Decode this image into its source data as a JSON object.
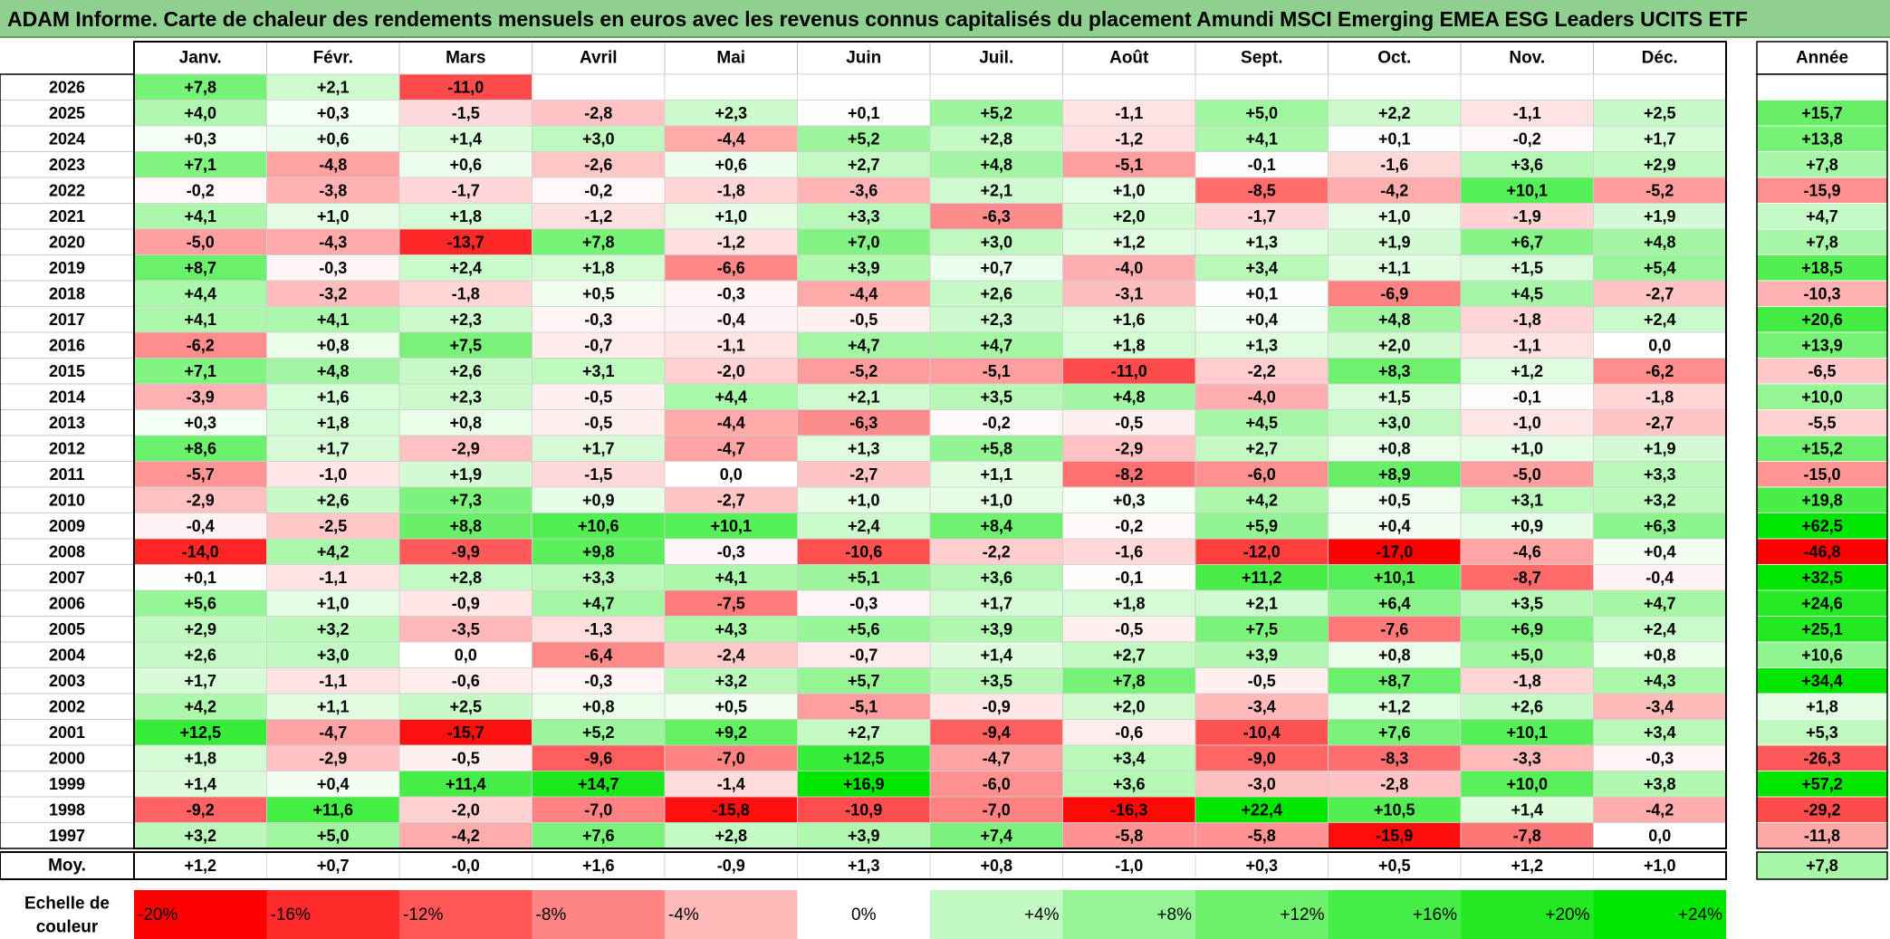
{
  "title": "ADAM Informe. Carte de chaleur des rendements mensuels en euros avec les revenus connus capitalisés du placement Amundi MSCI Emerging EMEA ESG Leaders UCITS ETF",
  "chart_data": {
    "type": "heatmap",
    "title": "ADAM Informe. Carte de chaleur des rendements mensuels en euros avec les revenus connus capitalisés du placement Amundi MSCI Emerging EMEA ESG Leaders UCITS ETF",
    "months": [
      "Janv.",
      "Févr.",
      "Mars",
      "Avril",
      "Mai",
      "Juin",
      "Juil.",
      "Août",
      "Sept.",
      "Oct.",
      "Nov.",
      "Déc."
    ],
    "year_header": "Année",
    "rows": [
      {
        "year": "2026",
        "values": [
          7.8,
          2.1,
          -11.0,
          null,
          null,
          null,
          null,
          null,
          null,
          null,
          null,
          null
        ],
        "annual": null
      },
      {
        "year": "2025",
        "values": [
          4.0,
          0.3,
          -1.5,
          -2.8,
          2.3,
          0.1,
          5.2,
          -1.1,
          5.0,
          2.2,
          -1.1,
          2.5
        ],
        "annual": 15.7
      },
      {
        "year": "2024",
        "values": [
          0.3,
          0.6,
          1.4,
          3.0,
          -4.4,
          5.2,
          2.8,
          -1.2,
          4.1,
          0.1,
          -0.2,
          1.7
        ],
        "annual": 13.8
      },
      {
        "year": "2023",
        "values": [
          7.1,
          -4.8,
          0.6,
          -2.6,
          0.6,
          2.7,
          4.8,
          -5.1,
          -0.1,
          -1.6,
          3.6,
          2.9
        ],
        "annual": 7.8
      },
      {
        "year": "2022",
        "values": [
          -0.2,
          -3.8,
          -1.7,
          -0.2,
          -1.8,
          -3.6,
          2.1,
          1.0,
          -8.5,
          -4.2,
          10.1,
          -5.2
        ],
        "annual": -15.9
      },
      {
        "year": "2021",
        "values": [
          4.1,
          1.0,
          1.8,
          -1.2,
          1.0,
          3.3,
          -6.3,
          2.0,
          -1.7,
          1.0,
          -1.9,
          1.9
        ],
        "annual": 4.7
      },
      {
        "year": "2020",
        "values": [
          -5.0,
          -4.3,
          -13.7,
          7.8,
          -1.2,
          7.0,
          3.0,
          1.2,
          1.3,
          1.9,
          6.7,
          4.8
        ],
        "annual": 7.8
      },
      {
        "year": "2019",
        "values": [
          8.7,
          -0.3,
          2.4,
          1.8,
          -6.6,
          3.9,
          0.7,
          -4.0,
          3.4,
          1.1,
          1.5,
          5.4
        ],
        "annual": 18.5
      },
      {
        "year": "2018",
        "values": [
          4.4,
          -3.2,
          -1.8,
          0.5,
          -0.3,
          -4.4,
          2.6,
          -3.1,
          0.1,
          -6.9,
          4.5,
          -2.7
        ],
        "annual": -10.3
      },
      {
        "year": "2017",
        "values": [
          4.1,
          4.1,
          2.3,
          -0.3,
          -0.4,
          -0.5,
          2.3,
          1.6,
          0.4,
          4.8,
          -1.8,
          2.4
        ],
        "annual": 20.6
      },
      {
        "year": "2016",
        "values": [
          -6.2,
          0.8,
          7.5,
          -0.7,
          -1.1,
          4.7,
          4.7,
          1.8,
          1.3,
          2.0,
          -1.1,
          0.0
        ],
        "annual": 13.9
      },
      {
        "year": "2015",
        "values": [
          7.1,
          4.8,
          2.6,
          3.1,
          -2.0,
          -5.2,
          -5.1,
          -11.0,
          -2.2,
          8.3,
          1.2,
          -6.2
        ],
        "annual": -6.5
      },
      {
        "year": "2014",
        "values": [
          -3.9,
          1.6,
          2.3,
          -0.5,
          4.4,
          2.1,
          3.5,
          4.8,
          -4.0,
          1.5,
          -0.1,
          -1.8
        ],
        "annual": 10.0
      },
      {
        "year": "2013",
        "values": [
          0.3,
          1.8,
          0.8,
          -0.5,
          -4.4,
          -6.3,
          -0.2,
          -0.5,
          4.5,
          3.0,
          -1.0,
          -2.7
        ],
        "annual": -5.5
      },
      {
        "year": "2012",
        "values": [
          8.6,
          1.7,
          -2.9,
          1.7,
          -4.7,
          1.3,
          5.8,
          -2.9,
          2.7,
          0.8,
          1.0,
          1.9
        ],
        "annual": 15.2
      },
      {
        "year": "2011",
        "values": [
          -5.7,
          -1.0,
          1.9,
          -1.5,
          0.0,
          -2.7,
          1.1,
          -8.2,
          -6.0,
          8.9,
          -5.0,
          3.3
        ],
        "annual": -15.0
      },
      {
        "year": "2010",
        "values": [
          -2.9,
          2.6,
          7.3,
          0.9,
          -2.7,
          1.0,
          1.0,
          0.3,
          4.2,
          0.5,
          3.1,
          3.2
        ],
        "annual": 19.8
      },
      {
        "year": "2009",
        "values": [
          -0.4,
          -2.5,
          8.8,
          10.6,
          10.1,
          2.4,
          8.4,
          -0.2,
          5.9,
          0.4,
          0.9,
          6.3
        ],
        "annual": 62.5
      },
      {
        "year": "2008",
        "values": [
          -14.0,
          4.2,
          -9.9,
          9.8,
          -0.3,
          -10.6,
          -2.2,
          -1.6,
          -12.0,
          -17.0,
          -4.6,
          0.4
        ],
        "annual": -46.8
      },
      {
        "year": "2007",
        "values": [
          0.1,
          -1.1,
          2.8,
          3.3,
          4.1,
          5.1,
          3.6,
          -0.1,
          11.2,
          10.1,
          -8.7,
          -0.4
        ],
        "annual": 32.5
      },
      {
        "year": "2006",
        "values": [
          5.6,
          1.0,
          -0.9,
          4.7,
          -7.5,
          -0.3,
          1.7,
          1.8,
          2.1,
          6.4,
          3.5,
          4.7
        ],
        "annual": 24.6
      },
      {
        "year": "2005",
        "values": [
          2.9,
          3.2,
          -3.5,
          -1.3,
          4.3,
          5.6,
          3.9,
          -0.5,
          7.5,
          -7.6,
          6.9,
          2.4
        ],
        "annual": 25.1
      },
      {
        "year": "2004",
        "values": [
          2.6,
          3.0,
          0.0,
          -6.4,
          -2.4,
          -0.7,
          1.4,
          2.7,
          3.9,
          0.8,
          5.0,
          0.8
        ],
        "annual": 10.6
      },
      {
        "year": "2003",
        "values": [
          1.7,
          -1.1,
          -0.6,
          -0.3,
          3.2,
          5.7,
          3.5,
          7.8,
          -0.5,
          8.7,
          -1.8,
          4.3
        ],
        "annual": 34.4
      },
      {
        "year": "2002",
        "values": [
          4.2,
          1.1,
          2.5,
          0.8,
          0.5,
          -5.1,
          -0.9,
          2.0,
          -3.4,
          1.2,
          2.6,
          -3.4
        ],
        "annual": 1.8
      },
      {
        "year": "2001",
        "values": [
          12.5,
          -4.7,
          -15.7,
          5.2,
          9.2,
          2.7,
          -9.4,
          -0.6,
          -10.4,
          7.6,
          10.1,
          3.4
        ],
        "annual": 5.3
      },
      {
        "year": "2000",
        "values": [
          1.8,
          -2.9,
          -0.5,
          -9.6,
          -7.0,
          12.5,
          -4.7,
          3.4,
          -9.0,
          -8.3,
          -3.3,
          -0.3
        ],
        "annual": -26.3
      },
      {
        "year": "1999",
        "values": [
          1.4,
          0.4,
          11.4,
          14.7,
          -1.4,
          16.9,
          -6.0,
          3.6,
          -3.0,
          -2.8,
          10.0,
          3.8
        ],
        "annual": 57.2
      },
      {
        "year": "1998",
        "values": [
          -9.2,
          11.6,
          -2.0,
          -7.0,
          -15.8,
          -10.9,
          -7.0,
          -16.3,
          22.4,
          10.5,
          1.4,
          -4.2
        ],
        "annual": -29.2
      },
      {
        "year": "1997",
        "values": [
          3.2,
          5.0,
          -4.2,
          7.6,
          2.8,
          3.9,
          7.4,
          -5.8,
          -5.8,
          -15.9,
          -7.8,
          0.0
        ],
        "annual": -11.8
      }
    ],
    "average": {
      "label": "Moy.",
      "values": [
        1.2,
        0.7,
        -0.0,
        1.6,
        -0.9,
        1.3,
        0.8,
        -1.0,
        0.3,
        0.5,
        1.2,
        1.0
      ],
      "annual": 7.8
    },
    "scale": {
      "label_line1": "Echelle de",
      "label_line2": "couleur",
      "stops": [
        -20,
        -16,
        -12,
        -8,
        -4,
        0,
        4,
        8,
        12,
        16,
        20,
        24
      ],
      "stop_labels": [
        "-20%",
        "-16%",
        "-12%",
        "-8%",
        "-4%",
        "0%",
        "+4%",
        "+8%",
        "+12%",
        "+16%",
        "+20%",
        "+24%"
      ]
    },
    "colors": {
      "negative_max": "#ff0000",
      "neutral": "#ffffff",
      "positive_max": "#00e600",
      "title_bg": "#8fcf8f"
    }
  }
}
